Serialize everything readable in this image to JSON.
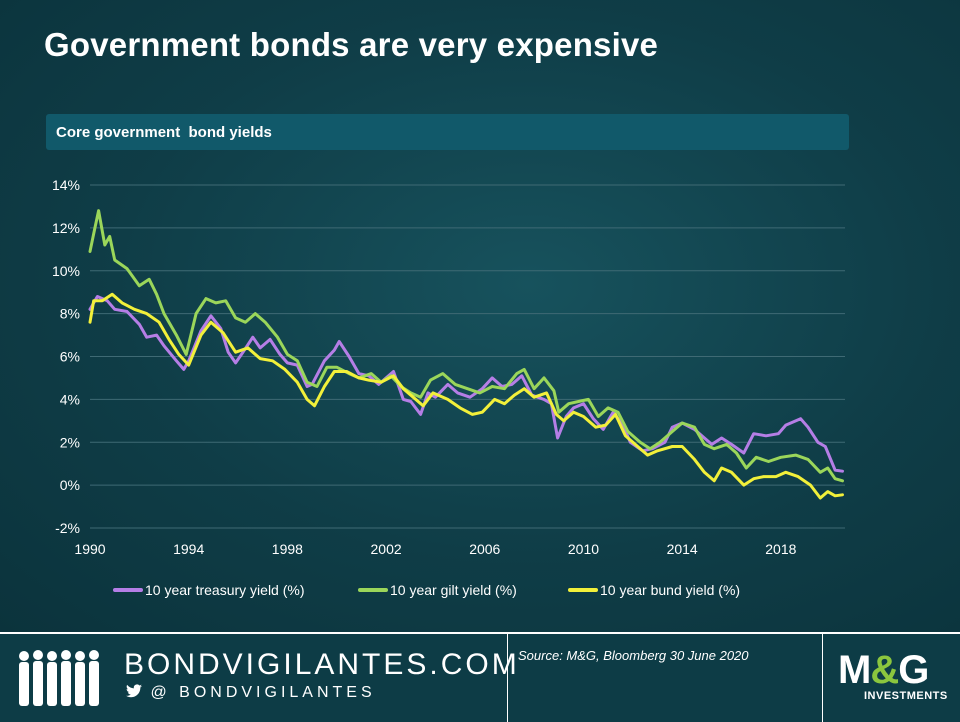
{
  "title": "Government bonds are very expensive",
  "panel_title": "Core government  bond yields",
  "chart_data": {
    "type": "line",
    "title": "Core government  bond yields",
    "xlim": [
      1990,
      2020.6
    ],
    "ylim": [
      -2,
      14
    ],
    "x_ticks": [
      1990,
      1994,
      1998,
      2002,
      2006,
      2010,
      2014,
      2018
    ],
    "y_ticks": [
      -2,
      0,
      2,
      4,
      6,
      8,
      10,
      12,
      14
    ],
    "y_tick_labels": [
      "-2%",
      "0%",
      "2%",
      "4%",
      "6%",
      "8%",
      "10%",
      "12%",
      "14%"
    ],
    "grid": "horizontal",
    "legend": "bottom",
    "series": [
      {
        "name": "10 year treasury yield (%)",
        "color": "#b57ee6",
        "points": [
          [
            1990,
            8.2
          ],
          [
            1990.3,
            8.8
          ],
          [
            1990.7,
            8.6
          ],
          [
            1991,
            8.2
          ],
          [
            1991.5,
            8.1
          ],
          [
            1992,
            7.5
          ],
          [
            1992.3,
            6.9
          ],
          [
            1992.7,
            7.0
          ],
          [
            1993,
            6.5
          ],
          [
            1993.5,
            5.8
          ],
          [
            1993.8,
            5.4
          ],
          [
            1994,
            5.8
          ],
          [
            1994.5,
            7.2
          ],
          [
            1994.9,
            7.9
          ],
          [
            1995.3,
            7.3
          ],
          [
            1995.6,
            6.2
          ],
          [
            1995.9,
            5.7
          ],
          [
            1996.2,
            6.2
          ],
          [
            1996.6,
            6.9
          ],
          [
            1996.9,
            6.4
          ],
          [
            1997.3,
            6.8
          ],
          [
            1997.7,
            6.1
          ],
          [
            1998,
            5.7
          ],
          [
            1998.4,
            5.6
          ],
          [
            1998.8,
            4.6
          ],
          [
            1999,
            4.7
          ],
          [
            1999.5,
            5.8
          ],
          [
            1999.9,
            6.3
          ],
          [
            2000.1,
            6.7
          ],
          [
            2000.5,
            6.0
          ],
          [
            2000.9,
            5.2
          ],
          [
            2001.3,
            5.1
          ],
          [
            2001.7,
            4.7
          ],
          [
            2002,
            5.0
          ],
          [
            2002.3,
            5.3
          ],
          [
            2002.7,
            4.0
          ],
          [
            2003,
            3.9
          ],
          [
            2003.4,
            3.3
          ],
          [
            2003.7,
            4.3
          ],
          [
            2004,
            4.1
          ],
          [
            2004.5,
            4.7
          ],
          [
            2004.9,
            4.3
          ],
          [
            2005.4,
            4.1
          ],
          [
            2005.9,
            4.5
          ],
          [
            2006.3,
            5.0
          ],
          [
            2006.7,
            4.6
          ],
          [
            2007.1,
            4.7
          ],
          [
            2007.5,
            5.1
          ],
          [
            2007.9,
            4.2
          ],
          [
            2008.4,
            4.0
          ],
          [
            2008.7,
            3.8
          ],
          [
            2008.95,
            2.2
          ],
          [
            2009.3,
            3.2
          ],
          [
            2009.6,
            3.6
          ],
          [
            2010,
            3.8
          ],
          [
            2010.4,
            3.1
          ],
          [
            2010.8,
            2.6
          ],
          [
            2011.2,
            3.4
          ],
          [
            2011.6,
            2.8
          ],
          [
            2011.9,
            2.0
          ],
          [
            2012.4,
            1.6
          ],
          [
            2012.8,
            1.7
          ],
          [
            2013.3,
            2.0
          ],
          [
            2013.6,
            2.7
          ],
          [
            2014,
            2.9
          ],
          [
            2014.5,
            2.6
          ],
          [
            2014.9,
            2.2
          ],
          [
            2015.2,
            1.9
          ],
          [
            2015.6,
            2.2
          ],
          [
            2016,
            1.9
          ],
          [
            2016.5,
            1.5
          ],
          [
            2016.9,
            2.4
          ],
          [
            2017.4,
            2.3
          ],
          [
            2017.9,
            2.4
          ],
          [
            2018.2,
            2.8
          ],
          [
            2018.8,
            3.1
          ],
          [
            2019.1,
            2.7
          ],
          [
            2019.5,
            2.0
          ],
          [
            2019.8,
            1.8
          ],
          [
            2020.2,
            0.7
          ],
          [
            2020.5,
            0.65
          ]
        ]
      },
      {
        "name": "10 year gilt yield (%)",
        "color": "#9bd65a",
        "points": [
          [
            1990,
            10.9
          ],
          [
            1990.2,
            12.0
          ],
          [
            1990.35,
            12.8
          ],
          [
            1990.6,
            11.2
          ],
          [
            1990.8,
            11.6
          ],
          [
            1991,
            10.5
          ],
          [
            1991.5,
            10.1
          ],
          [
            1992,
            9.3
          ],
          [
            1992.4,
            9.6
          ],
          [
            1992.7,
            8.9
          ],
          [
            1993,
            8.0
          ],
          [
            1993.5,
            7.0
          ],
          [
            1993.9,
            6.1
          ],
          [
            1994.3,
            8.0
          ],
          [
            1994.7,
            8.7
          ],
          [
            1995.1,
            8.5
          ],
          [
            1995.5,
            8.6
          ],
          [
            1995.9,
            7.8
          ],
          [
            1996.3,
            7.6
          ],
          [
            1996.7,
            8.0
          ],
          [
            1997.1,
            7.6
          ],
          [
            1997.6,
            6.9
          ],
          [
            1998,
            6.1
          ],
          [
            1998.4,
            5.8
          ],
          [
            1998.8,
            4.8
          ],
          [
            1999.2,
            4.6
          ],
          [
            1999.6,
            5.5
          ],
          [
            2000,
            5.5
          ],
          [
            2000.5,
            5.2
          ],
          [
            2000.9,
            5.0
          ],
          [
            2001.4,
            5.2
          ],
          [
            2001.8,
            4.8
          ],
          [
            2002.2,
            5.1
          ],
          [
            2002.6,
            4.6
          ],
          [
            2003,
            4.3
          ],
          [
            2003.4,
            4.1
          ],
          [
            2003.8,
            4.9
          ],
          [
            2004.3,
            5.2
          ],
          [
            2004.8,
            4.7
          ],
          [
            2005.3,
            4.5
          ],
          [
            2005.8,
            4.3
          ],
          [
            2006.3,
            4.6
          ],
          [
            2006.8,
            4.5
          ],
          [
            2007.3,
            5.2
          ],
          [
            2007.6,
            5.4
          ],
          [
            2008,
            4.5
          ],
          [
            2008.4,
            5.0
          ],
          [
            2008.8,
            4.4
          ],
          [
            2009,
            3.4
          ],
          [
            2009.4,
            3.8
          ],
          [
            2009.8,
            3.9
          ],
          [
            2010.2,
            4.0
          ],
          [
            2010.6,
            3.2
          ],
          [
            2011,
            3.6
          ],
          [
            2011.4,
            3.4
          ],
          [
            2011.8,
            2.5
          ],
          [
            2012.3,
            2.0
          ],
          [
            2012.7,
            1.7
          ],
          [
            2013.1,
            2.0
          ],
          [
            2013.6,
            2.5
          ],
          [
            2014,
            2.9
          ],
          [
            2014.5,
            2.7
          ],
          [
            2014.9,
            1.9
          ],
          [
            2015.3,
            1.7
          ],
          [
            2015.8,
            1.9
          ],
          [
            2016.2,
            1.5
          ],
          [
            2016.6,
            0.8
          ],
          [
            2017,
            1.3
          ],
          [
            2017.5,
            1.1
          ],
          [
            2018,
            1.3
          ],
          [
            2018.6,
            1.4
          ],
          [
            2019.1,
            1.2
          ],
          [
            2019.6,
            0.6
          ],
          [
            2019.9,
            0.8
          ],
          [
            2020.2,
            0.3
          ],
          [
            2020.5,
            0.2
          ]
        ]
      },
      {
        "name": "10 year bund yield (%)",
        "color": "#f2f03a",
        "points": [
          [
            1990,
            7.6
          ],
          [
            1990.15,
            8.6
          ],
          [
            1990.5,
            8.6
          ],
          [
            1990.9,
            8.9
          ],
          [
            1991.3,
            8.5
          ],
          [
            1991.8,
            8.2
          ],
          [
            1992.3,
            8.0
          ],
          [
            1992.8,
            7.6
          ],
          [
            1993.2,
            6.8
          ],
          [
            1993.6,
            6.1
          ],
          [
            1994,
            5.6
          ],
          [
            1994.5,
            7.0
          ],
          [
            1994.9,
            7.6
          ],
          [
            1995.4,
            7.1
          ],
          [
            1995.9,
            6.2
          ],
          [
            1996.4,
            6.4
          ],
          [
            1996.9,
            5.9
          ],
          [
            1997.4,
            5.8
          ],
          [
            1997.9,
            5.4
          ],
          [
            1998.4,
            4.8
          ],
          [
            1998.8,
            4.0
          ],
          [
            1999.1,
            3.7
          ],
          [
            1999.5,
            4.6
          ],
          [
            1999.9,
            5.3
          ],
          [
            2000.4,
            5.3
          ],
          [
            2000.9,
            5.0
          ],
          [
            2001.3,
            4.9
          ],
          [
            2001.8,
            4.8
          ],
          [
            2002.3,
            5.1
          ],
          [
            2002.7,
            4.5
          ],
          [
            2003.1,
            4.1
          ],
          [
            2003.5,
            3.7
          ],
          [
            2003.9,
            4.3
          ],
          [
            2004.5,
            4.0
          ],
          [
            2005,
            3.6
          ],
          [
            2005.5,
            3.3
          ],
          [
            2005.9,
            3.4
          ],
          [
            2006.4,
            4.0
          ],
          [
            2006.8,
            3.8
          ],
          [
            2007.2,
            4.2
          ],
          [
            2007.6,
            4.5
          ],
          [
            2008,
            4.1
          ],
          [
            2008.5,
            4.3
          ],
          [
            2008.9,
            3.3
          ],
          [
            2009.2,
            3.0
          ],
          [
            2009.6,
            3.4
          ],
          [
            2010,
            3.2
          ],
          [
            2010.5,
            2.7
          ],
          [
            2010.9,
            2.8
          ],
          [
            2011.3,
            3.3
          ],
          [
            2011.7,
            2.3
          ],
          [
            2012.2,
            1.8
          ],
          [
            2012.6,
            1.4
          ],
          [
            2013,
            1.6
          ],
          [
            2013.6,
            1.8
          ],
          [
            2014,
            1.8
          ],
          [
            2014.5,
            1.2
          ],
          [
            2014.9,
            0.6
          ],
          [
            2015.3,
            0.2
          ],
          [
            2015.6,
            0.8
          ],
          [
            2016,
            0.6
          ],
          [
            2016.5,
            0.0
          ],
          [
            2016.9,
            0.3
          ],
          [
            2017.3,
            0.4
          ],
          [
            2017.8,
            0.4
          ],
          [
            2018.2,
            0.6
          ],
          [
            2018.7,
            0.4
          ],
          [
            2019.2,
            0.0
          ],
          [
            2019.6,
            -0.6
          ],
          [
            2019.9,
            -0.3
          ],
          [
            2020.2,
            -0.5
          ],
          [
            2020.5,
            -0.45
          ]
        ]
      }
    ]
  },
  "footer": {
    "site_name": "BONDVIGILANTES.COM",
    "handle_prefix": "@",
    "handle": "BONDVIGILANTES",
    "source": "Source: M&G,  Bloomberg 30 June 2020",
    "logo_left": "M",
    "logo_amp": "&",
    "logo_right": "G",
    "logo_sub": "INVESTMENTS"
  },
  "colors": {
    "background": "#0f3a44",
    "header_bar": "#11596a",
    "gridline": "#3f6a74",
    "logo_accent": "#8bc63e"
  }
}
